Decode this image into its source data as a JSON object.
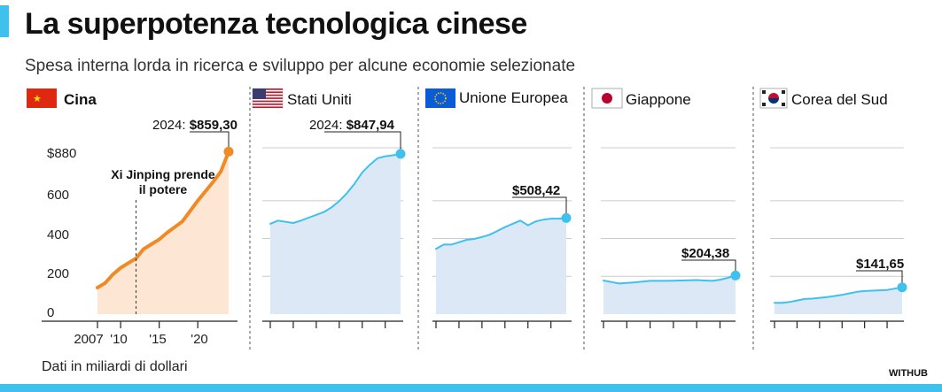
{
  "title": "La superpotenza tecnologica cinese",
  "subtitle": "Spesa interna lorda in ricerca e sviluppo per alcune economie selezionate",
  "footnote": "Dati in miliardi di dollari",
  "source": "WITHUB",
  "colors": {
    "china_line": "#f08a24",
    "china_area": "#fde6d3",
    "other_line": "#3ec1ec",
    "other_area": "#dde8f7",
    "accent": "#3ec1ec",
    "grid": "#cccccc"
  },
  "chart_data": [
    {
      "type": "area",
      "name": "Cina",
      "flag": "china-flag",
      "x": [
        2007,
        2008,
        2009,
        2010,
        2011,
        2012,
        2013,
        2014,
        2015,
        2016,
        2017,
        2018,
        2019,
        2020,
        2021,
        2022,
        2023,
        2024
      ],
      "values": [
        140,
        165,
        210,
        245,
        270,
        295,
        345,
        370,
        395,
        430,
        460,
        490,
        545,
        600,
        650,
        700,
        755,
        859.3
      ],
      "ylim": [
        0,
        880
      ],
      "yticks": [
        "0",
        "200",
        "400",
        "600",
        "$880"
      ],
      "ytick_values": [
        0,
        200,
        400,
        600,
        880
      ],
      "xticks": [
        "2007",
        "'10",
        "'15",
        "'20"
      ],
      "xtick_values": [
        2007,
        2010,
        2015,
        2020
      ],
      "end_label_prefix": "2024: ",
      "end_label_value": "$859,30",
      "annotation_line1": "Xi Jinping prende",
      "annotation_line2": "il potere",
      "annotation_x": 2012
    },
    {
      "type": "area",
      "name": "Stati Uniti",
      "flag": "usa-flag",
      "x": [
        2007,
        2008,
        2009,
        2010,
        2011,
        2012,
        2013,
        2014,
        2015,
        2016,
        2017,
        2018,
        2019,
        2020,
        2021,
        2022,
        2023,
        2024
      ],
      "values": [
        478,
        495,
        488,
        482,
        495,
        510,
        525,
        540,
        565,
        598,
        640,
        690,
        750,
        790,
        825,
        835,
        840,
        847.94
      ],
      "ylim": [
        0,
        880
      ],
      "end_label_prefix": "2024: ",
      "end_label_value": "$847,94"
    },
    {
      "type": "area",
      "name": "Unione Europea",
      "flag": "eu-flag",
      "x": [
        2007,
        2008,
        2009,
        2010,
        2011,
        2012,
        2013,
        2014,
        2015,
        2016,
        2017,
        2018,
        2019,
        2020,
        2021,
        2022,
        2023,
        2024
      ],
      "values": [
        345,
        368,
        368,
        380,
        393,
        398,
        408,
        420,
        440,
        460,
        478,
        495,
        470,
        490,
        500,
        505,
        505,
        508.42
      ],
      "ylim": [
        0,
        880
      ],
      "end_label_prefix": "",
      "end_label_value": "$508,42"
    },
    {
      "type": "area",
      "name": "Giappone",
      "flag": "japan-flag",
      "x": [
        2007,
        2008,
        2009,
        2010,
        2011,
        2012,
        2013,
        2014,
        2015,
        2016,
        2017,
        2018,
        2019,
        2020,
        2021,
        2022,
        2023,
        2024
      ],
      "values": [
        178,
        170,
        162,
        165,
        168,
        172,
        176,
        176,
        176,
        177,
        178,
        179,
        180,
        178,
        176,
        182,
        192,
        204.38
      ],
      "ylim": [
        0,
        880
      ],
      "end_label_prefix": "",
      "end_label_value": "$204,38"
    },
    {
      "type": "area",
      "name": "Corea del Sud",
      "flag": "korea-flag",
      "x": [
        2007,
        2008,
        2009,
        2010,
        2011,
        2012,
        2013,
        2014,
        2015,
        2016,
        2017,
        2018,
        2019,
        2020,
        2021,
        2022,
        2023,
        2024
      ],
      "values": [
        60,
        60,
        64,
        72,
        80,
        82,
        86,
        90,
        96,
        102,
        110,
        118,
        122,
        124,
        126,
        128,
        135,
        141.65
      ],
      "ylim": [
        0,
        880
      ],
      "end_label_prefix": "",
      "end_label_value": "$141,65"
    }
  ]
}
